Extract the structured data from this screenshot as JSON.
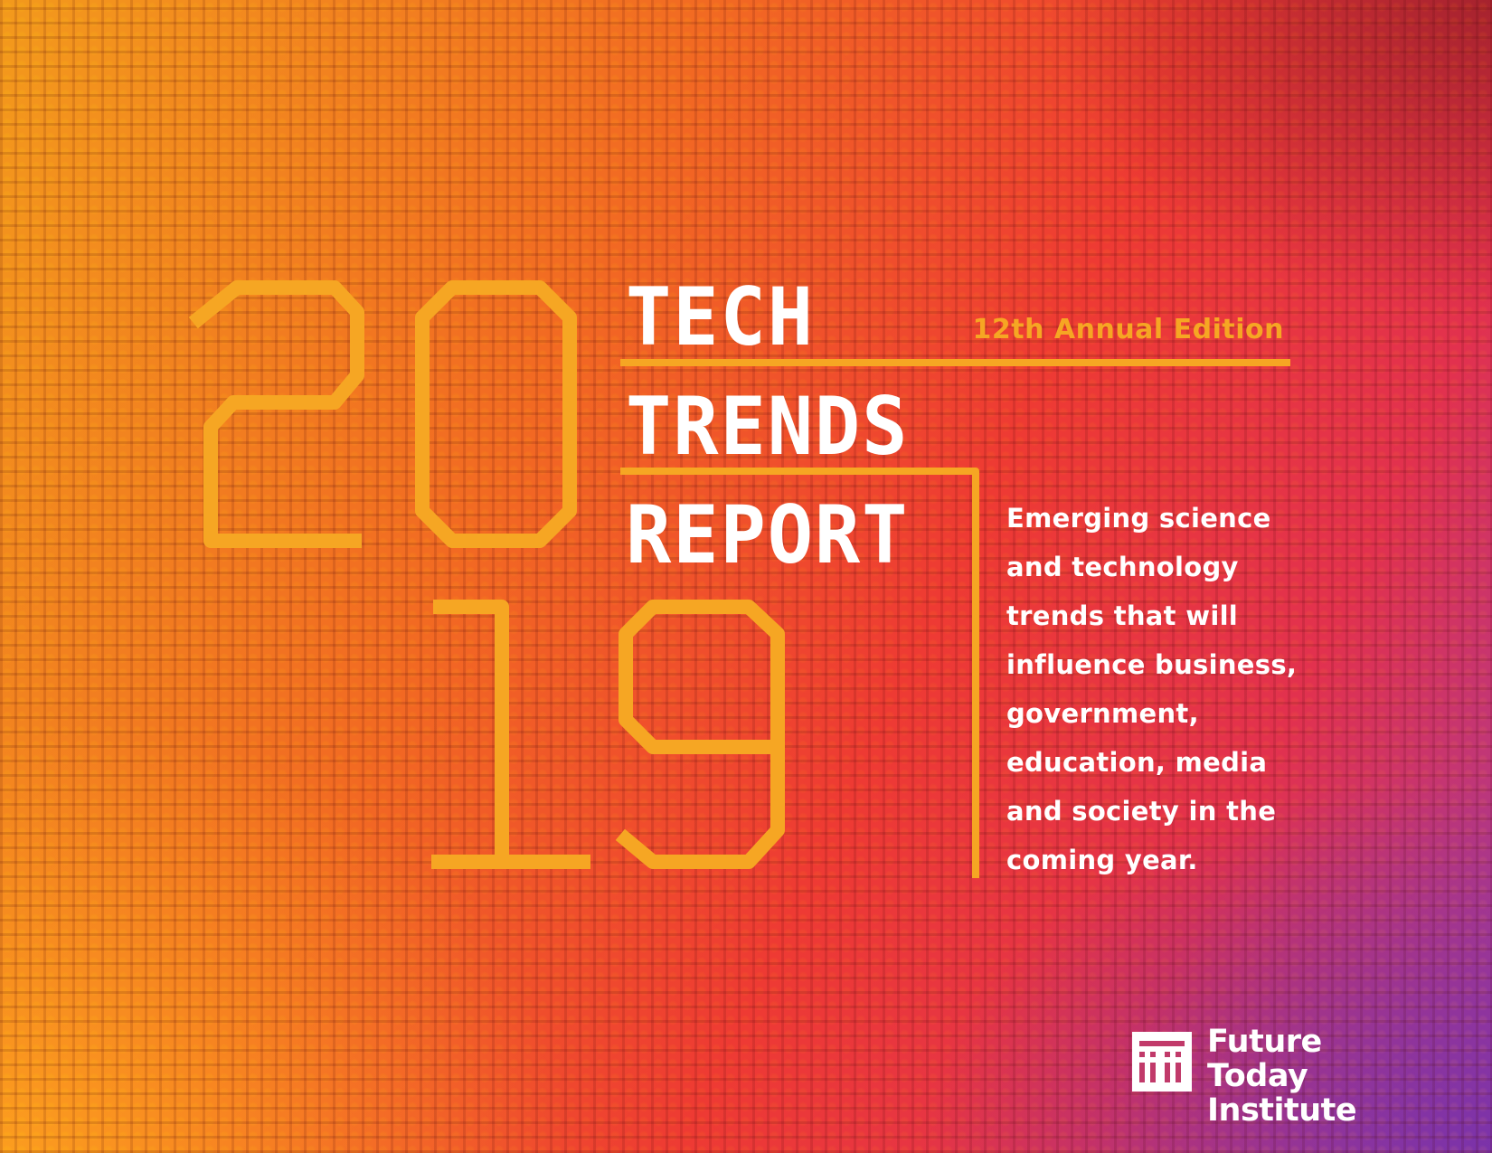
{
  "cover": {
    "year_digits": [
      "2",
      "0",
      "1",
      "9"
    ],
    "title_lines": [
      "TECH",
      "TRENDS",
      "REPORT"
    ],
    "edition": "12th Annual Edition",
    "tagline_lines": [
      "Emerging science",
      "and technology",
      "trends that will",
      "influence business,",
      "government,",
      "education, media",
      "and society in the",
      "coming year."
    ]
  },
  "logo": {
    "name_lines": [
      "Future Today",
      "Institute"
    ],
    "icon": "fti-logo-icon"
  },
  "colors": {
    "accent": "#f6a623",
    "text": "#ffffff",
    "background_start": "#f39a1c",
    "background_mid": "#ee3a33",
    "background_end": "#a43a9a"
  }
}
